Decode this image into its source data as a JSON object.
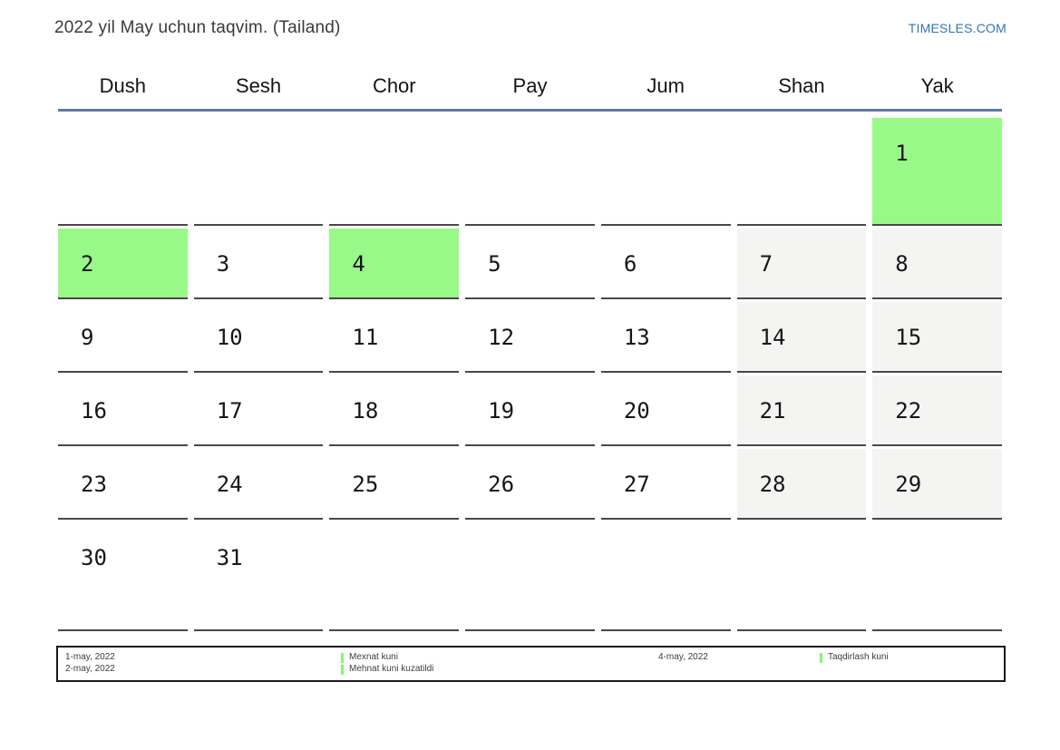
{
  "header": {
    "title": "2022 yil May uchun taqvim. (Tailand)",
    "site_link": "TIMESLES.COM"
  },
  "weekdays": [
    "Dush",
    "Sesh",
    "Chor",
    "Pay",
    "Jum",
    "Shan",
    "Yak"
  ],
  "calendar": {
    "month": "May",
    "year": "2022",
    "rows": [
      [
        {
          "day": "",
          "type": "empty"
        },
        {
          "day": "",
          "type": "empty"
        },
        {
          "day": "",
          "type": "empty"
        },
        {
          "day": "",
          "type": "empty"
        },
        {
          "day": "",
          "type": "empty"
        },
        {
          "day": "",
          "type": "empty"
        },
        {
          "day": "1",
          "type": "holiday"
        }
      ],
      [
        {
          "day": "2",
          "type": "holiday"
        },
        {
          "day": "3",
          "type": "normal"
        },
        {
          "day": "4",
          "type": "holiday"
        },
        {
          "day": "5",
          "type": "normal"
        },
        {
          "day": "6",
          "type": "normal"
        },
        {
          "day": "7",
          "type": "weekend"
        },
        {
          "day": "8",
          "type": "weekend"
        }
      ],
      [
        {
          "day": "9",
          "type": "normal"
        },
        {
          "day": "10",
          "type": "normal"
        },
        {
          "day": "11",
          "type": "normal"
        },
        {
          "day": "12",
          "type": "normal"
        },
        {
          "day": "13",
          "type": "normal"
        },
        {
          "day": "14",
          "type": "weekend"
        },
        {
          "day": "15",
          "type": "weekend"
        }
      ],
      [
        {
          "day": "16",
          "type": "normal"
        },
        {
          "day": "17",
          "type": "normal"
        },
        {
          "day": "18",
          "type": "normal"
        },
        {
          "day": "19",
          "type": "normal"
        },
        {
          "day": "20",
          "type": "normal"
        },
        {
          "day": "21",
          "type": "weekend"
        },
        {
          "day": "22",
          "type": "weekend"
        }
      ],
      [
        {
          "day": "23",
          "type": "normal"
        },
        {
          "day": "24",
          "type": "normal"
        },
        {
          "day": "25",
          "type": "normal"
        },
        {
          "day": "26",
          "type": "normal"
        },
        {
          "day": "27",
          "type": "normal"
        },
        {
          "day": "28",
          "type": "weekend"
        },
        {
          "day": "29",
          "type": "weekend"
        }
      ],
      [
        {
          "day": "30",
          "type": "normal"
        },
        {
          "day": "31",
          "type": "normal"
        },
        {
          "day": "",
          "type": "empty"
        },
        {
          "day": "",
          "type": "empty"
        },
        {
          "day": "",
          "type": "empty"
        },
        {
          "day": "",
          "type": "empty"
        },
        {
          "day": "",
          "type": "empty"
        }
      ]
    ]
  },
  "legend": {
    "left_dates": [
      "1-may, 2022",
      "2-may, 2022"
    ],
    "left_items": [
      "Mexnat kuni",
      "Mehnat kuni kuzatildi"
    ],
    "right_dates": [
      "4-may, 2022"
    ],
    "right_items": [
      "Taqdirlash kuni"
    ]
  },
  "colors": {
    "holiday_green": "#98f988",
    "weekend_gray": "#f4f4f3",
    "header_rule_blue": "#5b7ba6",
    "link_blue": "#2f74b8",
    "legend_bar_green": "#86f573"
  }
}
